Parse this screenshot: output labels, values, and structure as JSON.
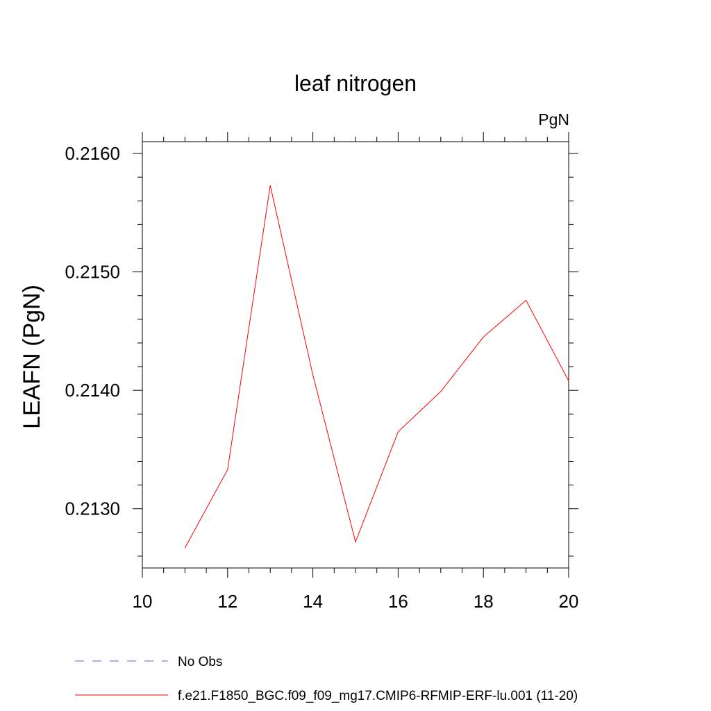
{
  "chart_data": {
    "type": "line",
    "title": "leaf nitrogen",
    "units_label": "PgN",
    "ylabel": "LEAFN  (PgN)",
    "xlabel": "",
    "xlim": [
      10,
      20
    ],
    "ylim": [
      0.2125,
      0.2161
    ],
    "x_ticks": [
      10,
      12,
      14,
      16,
      18,
      20
    ],
    "x_tick_labels": [
      "10",
      "12",
      "14",
      "16",
      "18",
      "20"
    ],
    "y_ticks": [
      0.213,
      0.214,
      0.215,
      0.216
    ],
    "y_tick_labels": [
      "0.2130",
      "0.2140",
      "0.2150",
      "0.2160"
    ],
    "grid": false,
    "legend_position": "bottom",
    "series": [
      {
        "name": "f.e21.F1850_BGC.f09_f09_mg17.CMIP6-RFMIP-ERF-lu.001 (11-20)",
        "color": "#ff0000",
        "x": [
          11,
          12,
          13,
          14,
          15,
          16,
          17,
          18,
          19,
          20
        ],
        "y": [
          0.21267,
          0.21333,
          0.21573,
          0.21413,
          0.21272,
          0.21365,
          0.21399,
          0.21445,
          0.21476,
          0.21408
        ]
      }
    ],
    "legend": [
      {
        "label": "No Obs",
        "color": "#6a5acd",
        "style": "dashed"
      },
      {
        "label": "f.e21.F1850_BGC.f09_f09_mg17.CMIP6-RFMIP-ERF-lu.001 (11-20)",
        "color": "#ff0000",
        "style": "solid"
      }
    ]
  }
}
